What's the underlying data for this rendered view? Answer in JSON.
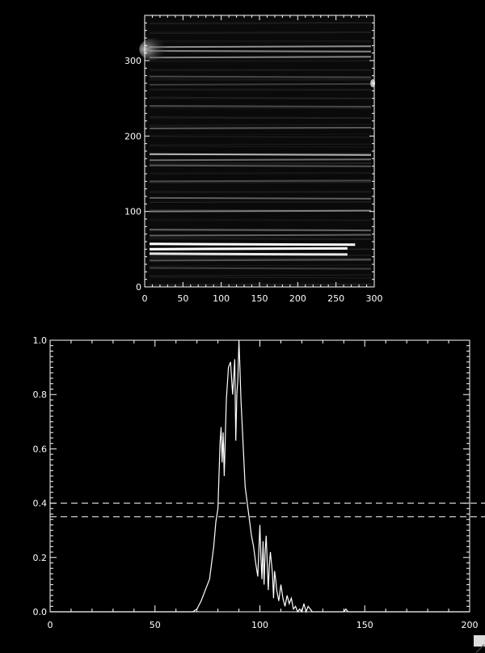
{
  "chart_data": [
    {
      "type": "heatmap",
      "title": "",
      "xlabel": "",
      "ylabel": "",
      "xlim": [
        0,
        300
      ],
      "ylim": [
        0,
        360
      ],
      "xticks": [
        0,
        50,
        100,
        150,
        200,
        250,
        300
      ],
      "yticks": [
        0,
        100,
        200,
        300
      ],
      "colormap": "grayscale",
      "grid": false,
      "bright_bands_y": [
        {
          "y": 318,
          "intensity": 0.55
        },
        {
          "y": 313,
          "intensity": 0.45
        },
        {
          "y": 304,
          "intensity": 0.5
        },
        {
          "y": 279,
          "intensity": 0.25
        },
        {
          "y": 268,
          "intensity": 0.2
        },
        {
          "y": 240,
          "intensity": 0.25
        },
        {
          "y": 210,
          "intensity": 0.3
        },
        {
          "y": 176,
          "intensity": 0.7
        },
        {
          "y": 168,
          "intensity": 0.4
        },
        {
          "y": 161,
          "intensity": 0.3
        },
        {
          "y": 140,
          "intensity": 0.25
        },
        {
          "y": 118,
          "intensity": 0.35
        },
        {
          "y": 100,
          "intensity": 0.45
        },
        {
          "y": 76,
          "intensity": 0.3
        },
        {
          "y": 68,
          "intensity": 0.35
        },
        {
          "y": 57,
          "intensity": 1.0
        },
        {
          "y": 50,
          "intensity": 1.0
        },
        {
          "y": 44,
          "intensity": 0.9
        },
        {
          "y": 35,
          "intensity": 0.3
        },
        {
          "y": 25,
          "intensity": 0.2
        }
      ]
    },
    {
      "type": "line",
      "title": "",
      "xlabel": "",
      "ylabel": "",
      "xlim": [
        0,
        200
      ],
      "ylim": [
        0,
        1.0
      ],
      "xticks": [
        "0",
        "50",
        "100",
        "150",
        "200"
      ],
      "yticks": [
        "0.0",
        "0.2",
        "0.4",
        "0.6",
        "0.8",
        "1.0"
      ],
      "grid": false,
      "series": [
        {
          "x": [
            0,
            68,
            70,
            72,
            74,
            76,
            77,
            78,
            79,
            80,
            81,
            81.5,
            82,
            82.5,
            83,
            84,
            85,
            86,
            87,
            88,
            88.5,
            89,
            89.5,
            90,
            90.5,
            91,
            92,
            93,
            94,
            95,
            96,
            97,
            98,
            99,
            100,
            100.5,
            101,
            101.5,
            102,
            102.5,
            103,
            103.5,
            104,
            104.5,
            105,
            106,
            106.5,
            107,
            107.5,
            108,
            109,
            110,
            111,
            112,
            113,
            114,
            115,
            116,
            117,
            118,
            119,
            120,
            121,
            122,
            123,
            124,
            125,
            130,
            140,
            141,
            142,
            200
          ],
          "y": [
            0,
            0,
            0.01,
            0.04,
            0.08,
            0.12,
            0.18,
            0.24,
            0.33,
            0.38,
            0.62,
            0.68,
            0.55,
            0.66,
            0.5,
            0.78,
            0.9,
            0.92,
            0.8,
            0.93,
            0.63,
            0.8,
            0.86,
            1.0,
            0.9,
            0.78,
            0.62,
            0.46,
            0.4,
            0.34,
            0.28,
            0.24,
            0.18,
            0.13,
            0.32,
            0.2,
            0.12,
            0.26,
            0.1,
            0.22,
            0.28,
            0.18,
            0.08,
            0.17,
            0.22,
            0.14,
            0.05,
            0.15,
            0.12,
            0.08,
            0.04,
            0.1,
            0.05,
            0.02,
            0.06,
            0.03,
            0.05,
            0.01,
            0.02,
            0.0,
            0.01,
            0.0,
            0.03,
            0.0,
            0.02,
            0.01,
            0.0,
            0.0,
            0.0,
            0.01,
            0.0,
            0.0
          ]
        }
      ],
      "reference_lines_y": [
        0.4,
        0.35
      ],
      "reference_line_style": "dashed"
    }
  ]
}
